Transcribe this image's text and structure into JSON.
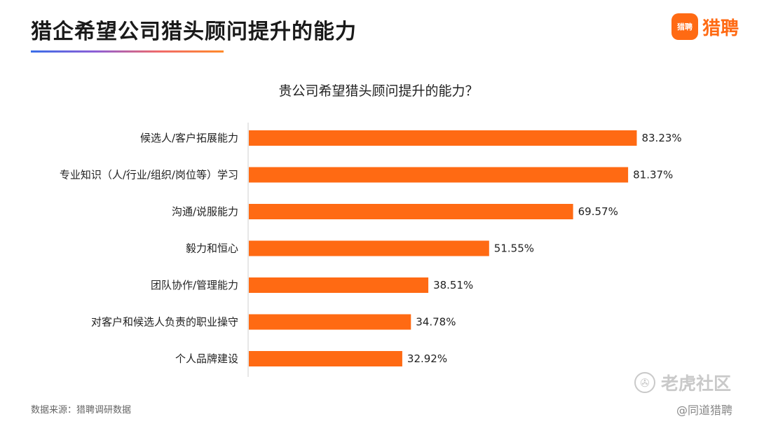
{
  "header": {
    "title": "猎企希望公司猎头顾问提升的能力",
    "brand_logo_text": "猎聘",
    "brand_name": "猎聘"
  },
  "chart_data": {
    "type": "bar",
    "orientation": "horizontal",
    "title": "贵公司希望猎头顾问提升的能力？",
    "xlabel": "",
    "ylabel": "",
    "xlim": [
      0,
      100
    ],
    "grid": false,
    "bar_color": "#ff6a13",
    "categories": [
      "候选人/客户拓展能力",
      "专业知识（人/行业/组织/岗位等）学习",
      "沟通/说服能力",
      "毅力和恒心",
      "团队协作/管理能力",
      "对客户和候选人负责的职业操守",
      "个人品牌建设"
    ],
    "values": [
      83.23,
      81.37,
      69.57,
      51.55,
      38.51,
      34.78,
      32.92
    ],
    "value_labels": [
      "83.23%",
      "81.37%",
      "69.57%",
      "51.55%",
      "38.51%",
      "34.78%",
      "32.92%"
    ]
  },
  "footer": {
    "source": "数据来源：猎聘调研数据",
    "watermark": "老虎社区",
    "watermark_sub": "@同道猎聘"
  }
}
